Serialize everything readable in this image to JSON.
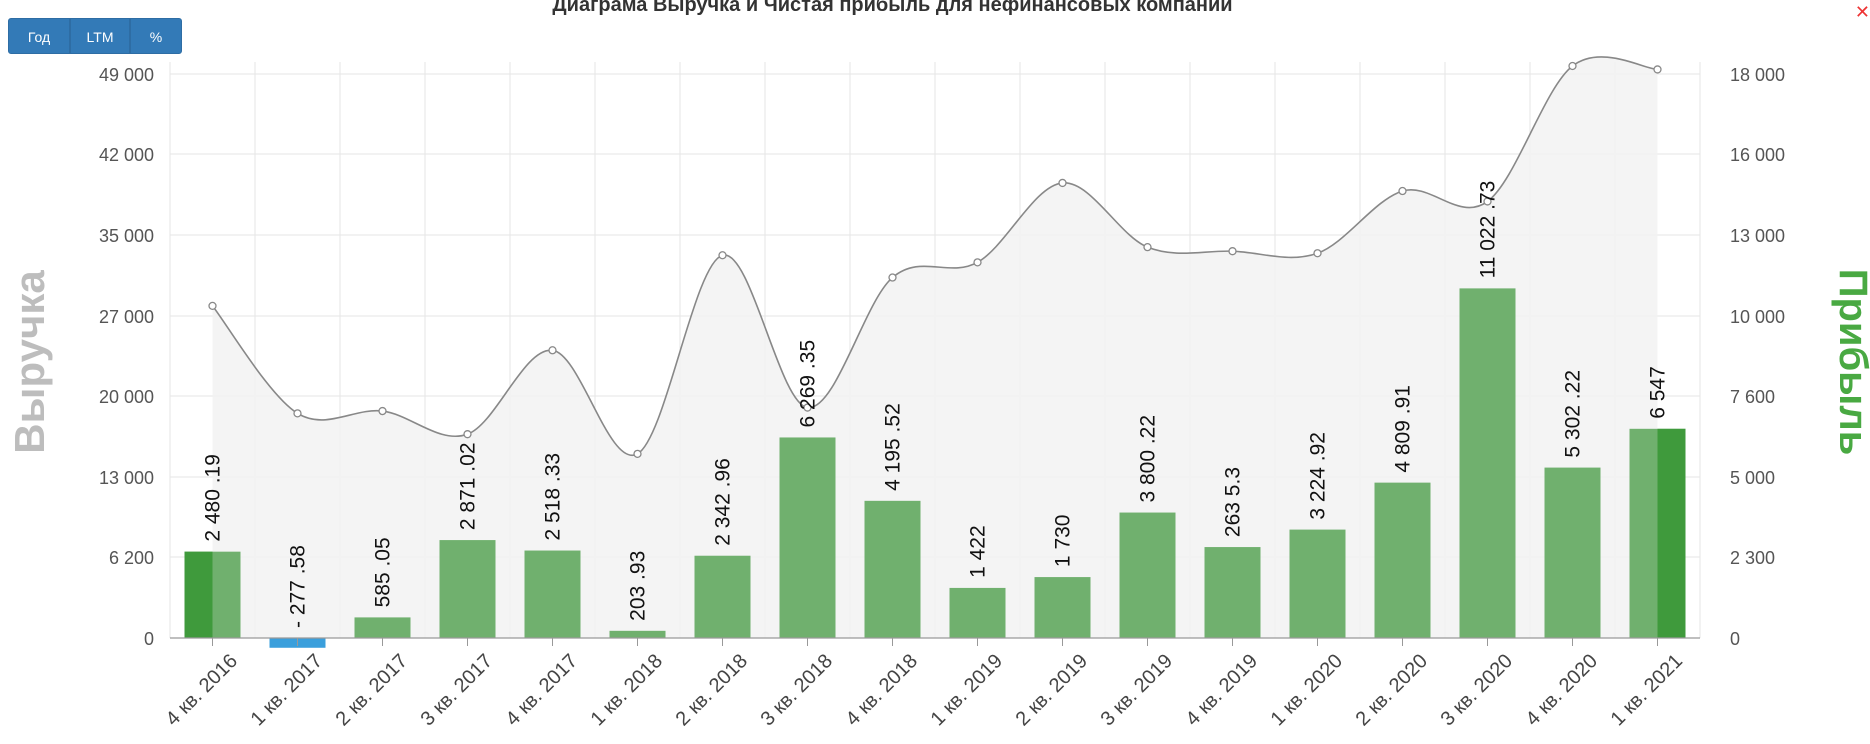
{
  "toolbar": {
    "buttons": [
      "Год",
      "LTM",
      "%"
    ]
  },
  "chart_data": {
    "type": "bar+line",
    "title": "Диаграма Выручка и Чистая прибыль для нефинансовых компаний",
    "ylabel_left": "Выручка",
    "ylabel_right": "Прибыль",
    "categories": [
      "4 кв. 2016",
      "1 кв. 2017",
      "2 кв. 2017",
      "3 кв. 2017",
      "4 кв. 2017",
      "1 кв. 2018",
      "2 кв. 2018",
      "3 кв. 2018",
      "4 кв. 2018",
      "1 кв. 2019",
      "2 кв. 2019",
      "3 кв. 2019",
      "4 кв. 2019",
      "1 кв. 2020",
      "2 кв. 2020",
      "3 кв. 2020",
      "4 кв. 2020",
      "1 кв. 2021"
    ],
    "left_axis": {
      "ticks": [
        0,
        6200,
        13000,
        20000,
        27000,
        35000,
        42000,
        49000
      ],
      "tick_labels": [
        "0",
        "6 200",
        "13 000",
        "20 000",
        "27 000",
        "35 000",
        "42 000",
        "49 000"
      ]
    },
    "right_axis": {
      "ticks": [
        0,
        2300,
        5000,
        7600,
        10000,
        13000,
        16000,
        18000
      ],
      "tick_labels": [
        "0",
        "2 300",
        "5 000",
        "7 600",
        "10 000",
        "13 000",
        "16 000",
        "18 000"
      ]
    },
    "series": [
      {
        "name": "Выручка",
        "kind": "area-spline",
        "axis": "left",
        "values": [
          28000,
          18500,
          18700,
          16700,
          24000,
          15000,
          33000,
          19000,
          30800,
          32300,
          39500,
          33800,
          33400,
          33200,
          38800,
          37900,
          49700,
          49400
        ]
      },
      {
        "name": "Прибыль",
        "kind": "bar",
        "axis": "right",
        "values": [
          2480.19,
          -277.58,
          585.05,
          2871.02,
          2518.33,
          203.93,
          2342.96,
          6269.35,
          4195.52,
          1422,
          1730,
          3800.22,
          2635.3,
          3224.92,
          4809.91,
          11022.73,
          5302.22,
          6547
        ],
        "labels": [
          "2 480 .19",
          "- 277 .58",
          "585 .05",
          "2 871 .02",
          "2 518 .33",
          "203 .93",
          "2 342 .96",
          "6 269 .35",
          "4 195 .52",
          "1 422",
          "1 730",
          "3 800 .22",
          "263 5.3",
          "3 224 .92",
          "4 809 .91",
          "11 022 .73",
          "5 302 .22",
          "6 547"
        ]
      }
    ],
    "colors": {
      "bar": "#70b06e",
      "bar_highlight": "#3f9a3c",
      "bar_negative": "#3a9fdc",
      "area_fill": "#f2f2f2",
      "line": "#888888",
      "grid": "#e6e6e6"
    },
    "highlighted_bars": [
      0,
      17
    ]
  }
}
